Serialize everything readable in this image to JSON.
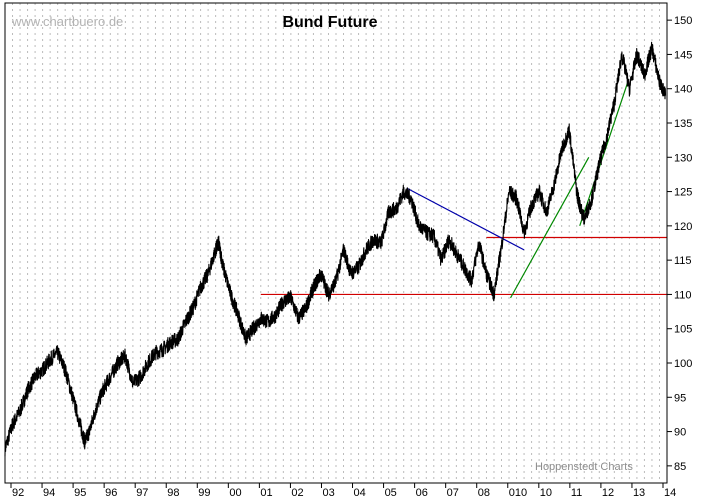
{
  "watermark": "www.chartbuero.de",
  "credit": "Hoppenstedt Charts",
  "chart_data": {
    "type": "line",
    "title": "Bund Future",
    "xlabel": "",
    "ylabel": "",
    "x_ticks": [
      "92",
      "94",
      "95",
      "96",
      "97",
      "98",
      "99",
      "00",
      "01",
      "02",
      "03",
      "04",
      "05",
      "06",
      "07",
      "08",
      "010",
      "10",
      "11",
      "12",
      "13",
      "14"
    ],
    "y_ticks": [
      85,
      90,
      95,
      100,
      105,
      110,
      115,
      120,
      125,
      130,
      135,
      140,
      145,
      150
    ],
    "ylim": [
      82.5,
      152.5
    ],
    "xlim": [
      1992.0,
      2014.0
    ],
    "grid": "vertical-dashed",
    "y_axis_position": "right",
    "colors": {
      "price": "#000000",
      "support": "#d00000",
      "downtrend": "#0000aa",
      "uptrend": "#008800",
      "grid": "#bbbbbb"
    },
    "series": [
      {
        "values_x": [
          1992.0,
          1992.25,
          1992.5,
          1992.75,
          1993.0,
          1993.25,
          1993.5,
          1993.75,
          1994.0,
          1994.25,
          1994.5,
          1994.65,
          1994.8,
          1995.0,
          1995.25,
          1995.5,
          1995.75,
          1996.0,
          1996.25,
          1996.5,
          1996.75,
          1997.0,
          1997.25,
          1997.5,
          1997.75,
          1998.0,
          1998.25,
          1998.5,
          1998.75,
          1999.0,
          1999.1,
          1999.25,
          1999.5,
          1999.75,
          2000.0,
          2000.25,
          2000.5,
          2000.75,
          2001.0,
          2001.25,
          2001.5,
          2001.75,
          2002.0,
          2002.25,
          2002.5,
          2002.75,
          2003.0,
          2003.25,
          2003.5,
          2003.75,
          2004.0,
          2004.25,
          2004.5,
          2004.75,
          2005.0,
          2005.25,
          2005.5,
          2005.75,
          2006.0,
          2006.25,
          2006.5,
          2006.75,
          2007.0,
          2007.25,
          2007.5,
          2007.75,
          2008.0,
          2008.25,
          2008.5,
          2008.75,
          2009.0,
          2009.25,
          2009.5,
          2009.75,
          2010.0,
          2010.25,
          2010.5,
          2010.75,
          2011.0,
          2011.1,
          2011.25,
          2011.5,
          2011.75,
          2012.0,
          2012.25,
          2012.5,
          2012.75,
          2013.0,
          2013.25,
          2013.5,
          2013.75,
          2013.95
        ],
        "values_y": [
          87.5,
          91,
          93,
          96,
          98,
          99,
          100.5,
          101.5,
          99,
          95,
          91,
          88.5,
          90,
          93,
          96,
          98,
          100,
          101,
          97,
          98,
          100,
          101.5,
          102,
          103,
          103.5,
          106,
          108,
          111,
          113,
          116.5,
          117.5,
          114,
          110,
          107,
          103.5,
          105,
          106.5,
          106,
          107,
          109,
          109.5,
          106.5,
          108,
          111,
          113,
          110,
          112,
          116.5,
          113,
          114,
          116.5,
          118,
          117.5,
          122,
          122.5,
          125,
          124,
          120,
          119,
          118.5,
          115,
          118,
          116,
          114,
          112,
          117.5,
          113,
          110,
          117,
          125,
          124,
          119,
          123,
          125,
          122,
          126,
          131,
          134,
          125,
          123,
          121,
          124,
          129,
          133,
          138,
          145,
          140,
          145,
          142,
          146,
          141,
          139
        ]
      }
    ],
    "lines": [
      {
        "label": "support-110",
        "y": [
          110,
          110
        ],
        "x": [
          2000.5,
          2014.0
        ]
      },
      {
        "label": "support-118",
        "y": [
          118.3,
          118.3
        ],
        "x": [
          2008.0,
          2014.0
        ]
      },
      {
        "label": "downtrend",
        "y": [
          125.5,
          116.5
        ],
        "x": [
          2005.35,
          2009.25
        ]
      },
      {
        "label": "uptrend-1",
        "y": [
          109.5,
          130
        ],
        "x": [
          2008.8,
          2011.4
        ]
      },
      {
        "label": "uptrend-2",
        "y": [
          120,
          141
        ],
        "x": [
          2011.1,
          2012.7
        ]
      }
    ]
  }
}
